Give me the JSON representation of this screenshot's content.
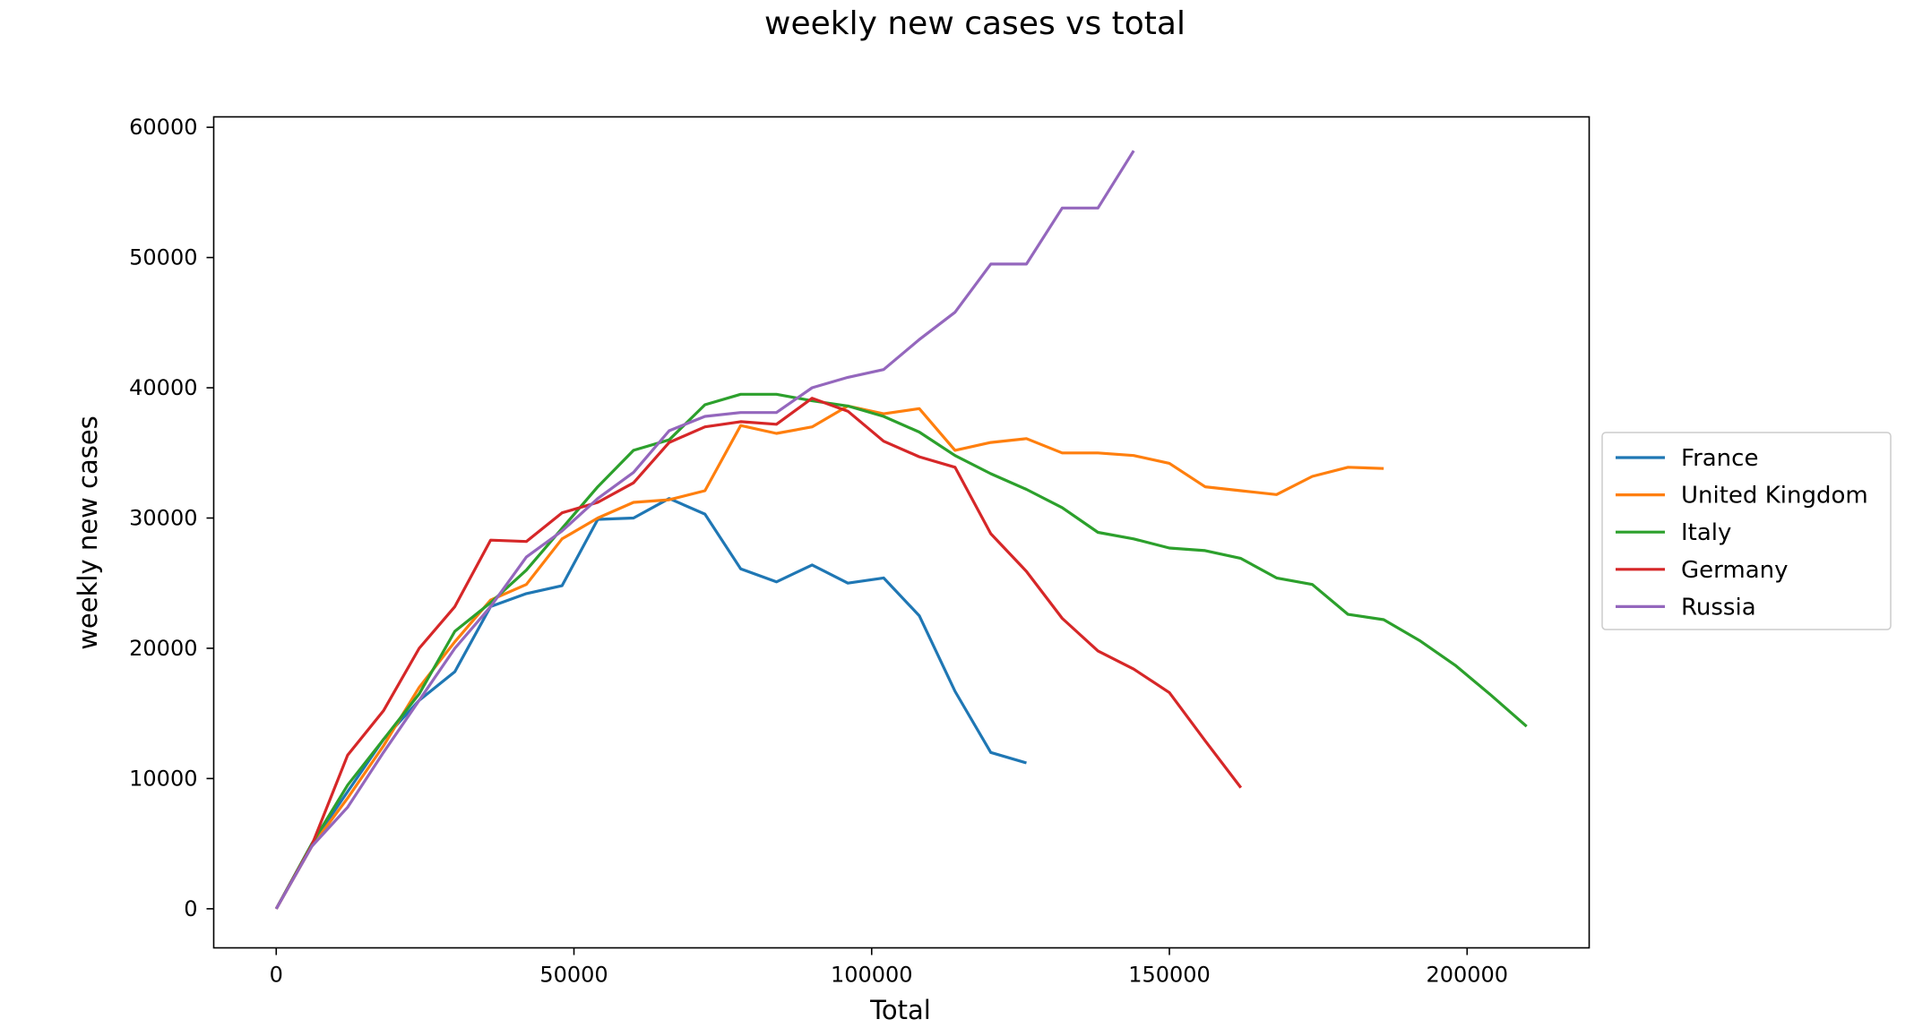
{
  "chart_data": {
    "type": "line",
    "title": "weekly new cases vs total",
    "xlabel": "Total",
    "ylabel": "weekly new cases",
    "xlim": [
      -10500,
      220500
    ],
    "ylim": [
      -3000,
      60800
    ],
    "xticks": [
      0,
      50000,
      100000,
      150000,
      200000
    ],
    "yticks": [
      0,
      10000,
      20000,
      30000,
      40000,
      50000,
      60000
    ],
    "grid": false,
    "legend_position": "center-right, outside plot",
    "series": [
      {
        "name": "France",
        "color": "#1f77b4",
        "points": [
          [
            0,
            0
          ],
          [
            6000,
            5000
          ],
          [
            12000,
            9000
          ],
          [
            18000,
            13000
          ],
          [
            24000,
            16000
          ],
          [
            30000,
            18200
          ],
          [
            36000,
            23200
          ],
          [
            42000,
            24200
          ],
          [
            48000,
            24800
          ],
          [
            54000,
            29900
          ],
          [
            60000,
            30000
          ],
          [
            66000,
            31500
          ],
          [
            72000,
            30300
          ],
          [
            78000,
            26100
          ],
          [
            84000,
            25100
          ],
          [
            90000,
            26400
          ],
          [
            96000,
            25000
          ],
          [
            102000,
            25400
          ],
          [
            108000,
            22500
          ],
          [
            114000,
            16700
          ],
          [
            120000,
            12000
          ],
          [
            126000,
            11200
          ]
        ]
      },
      {
        "name": "United Kingdom",
        "color": "#ff7f0e",
        "points": [
          [
            0,
            0
          ],
          [
            6000,
            4800
          ],
          [
            12000,
            8500
          ],
          [
            18000,
            12500
          ],
          [
            24000,
            17000
          ],
          [
            30000,
            20500
          ],
          [
            36000,
            23700
          ],
          [
            42000,
            24900
          ],
          [
            48000,
            28400
          ],
          [
            54000,
            30000
          ],
          [
            60000,
            31200
          ],
          [
            66000,
            31400
          ],
          [
            72000,
            32100
          ],
          [
            78000,
            37100
          ],
          [
            84000,
            36500
          ],
          [
            90000,
            37000
          ],
          [
            96000,
            38600
          ],
          [
            102000,
            38000
          ],
          [
            108000,
            38400
          ],
          [
            114000,
            35200
          ],
          [
            120000,
            35800
          ],
          [
            126000,
            36100
          ],
          [
            132000,
            35000
          ],
          [
            138000,
            35000
          ],
          [
            144000,
            34800
          ],
          [
            150000,
            34200
          ],
          [
            156000,
            32400
          ],
          [
            162000,
            32100
          ],
          [
            168000,
            31800
          ],
          [
            174000,
            33200
          ],
          [
            180000,
            33900
          ],
          [
            186000,
            33800
          ]
        ]
      },
      {
        "name": "Italy",
        "color": "#2ca02c",
        "points": [
          [
            0,
            0
          ],
          [
            6000,
            5000
          ],
          [
            12000,
            9500
          ],
          [
            18000,
            13000
          ],
          [
            24000,
            16500
          ],
          [
            30000,
            21300
          ],
          [
            36000,
            23500
          ],
          [
            42000,
            26000
          ],
          [
            48000,
            29200
          ],
          [
            54000,
            32400
          ],
          [
            60000,
            35200
          ],
          [
            66000,
            36000
          ],
          [
            72000,
            38700
          ],
          [
            78000,
            39500
          ],
          [
            84000,
            39500
          ],
          [
            90000,
            39000
          ],
          [
            96000,
            38600
          ],
          [
            102000,
            37800
          ],
          [
            108000,
            36600
          ],
          [
            114000,
            34800
          ],
          [
            120000,
            33400
          ],
          [
            126000,
            32200
          ],
          [
            132000,
            30800
          ],
          [
            138000,
            28900
          ],
          [
            144000,
            28400
          ],
          [
            150000,
            27700
          ],
          [
            156000,
            27500
          ],
          [
            162000,
            26900
          ],
          [
            168000,
            25400
          ],
          [
            174000,
            24900
          ],
          [
            180000,
            22600
          ],
          [
            186000,
            22200
          ],
          [
            192000,
            20600
          ],
          [
            198000,
            18700
          ],
          [
            204000,
            16400
          ],
          [
            210000,
            14000
          ]
        ]
      },
      {
        "name": "Germany",
        "color": "#d62728",
        "points": [
          [
            0,
            0
          ],
          [
            6000,
            4900
          ],
          [
            12000,
            11800
          ],
          [
            18000,
            15200
          ],
          [
            24000,
            20000
          ],
          [
            30000,
            23200
          ],
          [
            36000,
            28300
          ],
          [
            42000,
            28200
          ],
          [
            48000,
            30400
          ],
          [
            54000,
            31200
          ],
          [
            60000,
            32700
          ],
          [
            66000,
            35800
          ],
          [
            72000,
            37000
          ],
          [
            78000,
            37400
          ],
          [
            84000,
            37200
          ],
          [
            90000,
            39200
          ],
          [
            96000,
            38200
          ],
          [
            102000,
            35900
          ],
          [
            108000,
            34700
          ],
          [
            114000,
            33900
          ],
          [
            120000,
            28800
          ],
          [
            126000,
            25900
          ],
          [
            132000,
            22300
          ],
          [
            138000,
            19800
          ],
          [
            144000,
            18400
          ],
          [
            150000,
            16600
          ],
          [
            156000,
            12900
          ],
          [
            162000,
            9300
          ]
        ]
      },
      {
        "name": "Russia",
        "color": "#9467bd",
        "points": [
          [
            0,
            0
          ],
          [
            6000,
            4800
          ],
          [
            12000,
            7800
          ],
          [
            18000,
            12000
          ],
          [
            24000,
            16000
          ],
          [
            30000,
            20000
          ],
          [
            36000,
            23200
          ],
          [
            42000,
            27000
          ],
          [
            48000,
            29000
          ],
          [
            54000,
            31500
          ],
          [
            60000,
            33500
          ],
          [
            66000,
            36700
          ],
          [
            72000,
            37800
          ],
          [
            78000,
            38100
          ],
          [
            84000,
            38100
          ],
          [
            90000,
            40000
          ],
          [
            96000,
            40800
          ],
          [
            102000,
            41400
          ],
          [
            108000,
            43700
          ],
          [
            114000,
            45800
          ],
          [
            120000,
            49500
          ],
          [
            126000,
            49500
          ],
          [
            132000,
            53800
          ],
          [
            138000,
            53800
          ],
          [
            144000,
            58200
          ]
        ]
      }
    ]
  }
}
